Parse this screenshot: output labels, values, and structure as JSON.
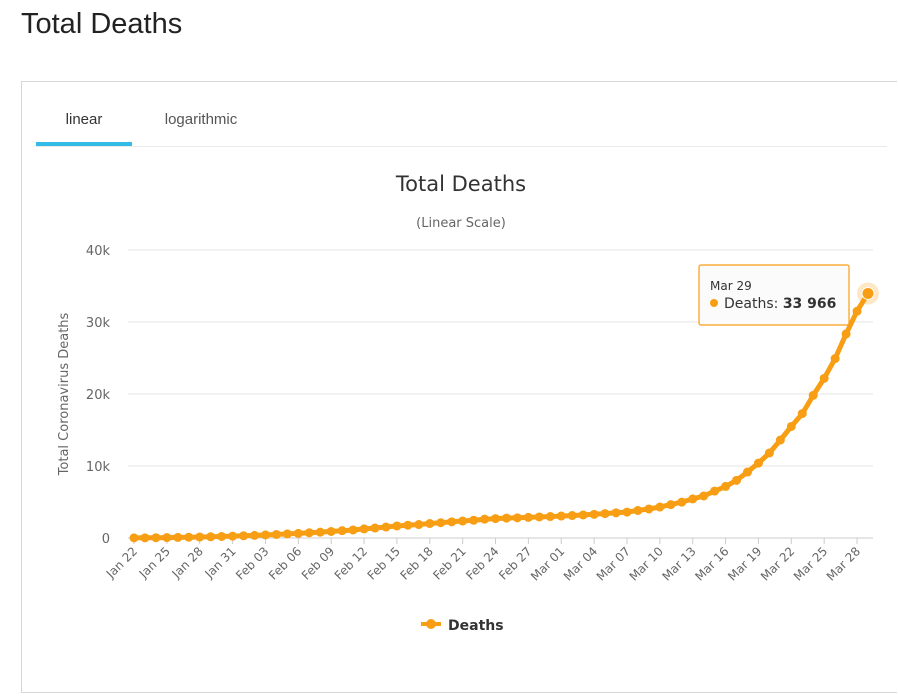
{
  "header": {
    "title": "Total Deaths"
  },
  "tabs": [
    {
      "label": "linear",
      "active": true
    },
    {
      "label": "logarithmic",
      "active": false
    }
  ],
  "colors": {
    "series": "#f79e14",
    "tab_active": "#33bbe8",
    "grid": "#e6e6e6"
  },
  "tooltip": {
    "date": "Mar 29",
    "series": "Deaths",
    "value": "33 966"
  },
  "chart_data": {
    "type": "line",
    "title": "Total Deaths",
    "subtitle": "(Linear Scale)",
    "ylabel": "Total Coronavirus Deaths",
    "xlabel": "",
    "ylim": [
      0,
      40000
    ],
    "yticks": [
      0,
      10000,
      20000,
      30000,
      40000
    ],
    "ytick_labels": [
      "0",
      "10k",
      "20k",
      "30k",
      "40k"
    ],
    "xtick_labels": [
      "Jan 22",
      "Jan 25",
      "Jan 28",
      "Jan 31",
      "Feb 03",
      "Feb 06",
      "Feb 09",
      "Feb 12",
      "Feb 15",
      "Feb 18",
      "Feb 21",
      "Feb 24",
      "Feb 27",
      "Mar 01",
      "Mar 04",
      "Mar 07",
      "Mar 10",
      "Mar 13",
      "Mar 16",
      "Mar 19",
      "Mar 22",
      "Mar 25",
      "Mar 28"
    ],
    "grid": true,
    "legend": "bottom-center",
    "series": [
      {
        "name": "Deaths",
        "x": [
          "Jan 22",
          "Jan 23",
          "Jan 24",
          "Jan 25",
          "Jan 26",
          "Jan 27",
          "Jan 28",
          "Jan 29",
          "Jan 30",
          "Jan 31",
          "Feb 01",
          "Feb 02",
          "Feb 03",
          "Feb 04",
          "Feb 05",
          "Feb 06",
          "Feb 07",
          "Feb 08",
          "Feb 09",
          "Feb 10",
          "Feb 11",
          "Feb 12",
          "Feb 13",
          "Feb 14",
          "Feb 15",
          "Feb 16",
          "Feb 17",
          "Feb 18",
          "Feb 19",
          "Feb 20",
          "Feb 21",
          "Feb 22",
          "Feb 23",
          "Feb 24",
          "Feb 25",
          "Feb 26",
          "Feb 27",
          "Feb 28",
          "Feb 29",
          "Mar 01",
          "Mar 02",
          "Mar 03",
          "Mar 04",
          "Mar 05",
          "Mar 06",
          "Mar 07",
          "Mar 08",
          "Mar 09",
          "Mar 10",
          "Mar 11",
          "Mar 12",
          "Mar 13",
          "Mar 14",
          "Mar 15",
          "Mar 16",
          "Mar 17",
          "Mar 18",
          "Mar 19",
          "Mar 20",
          "Mar 21",
          "Mar 22",
          "Mar 23",
          "Mar 24",
          "Mar 25",
          "Mar 26",
          "Mar 27",
          "Mar 28",
          "Mar 29"
        ],
        "values": [
          17,
          25,
          41,
          56,
          80,
          106,
          132,
          170,
          213,
          259,
          304,
          362,
          426,
          492,
          565,
          638,
          724,
          813,
          910,
          1018,
          1115,
          1261,
          1383,
          1526,
          1669,
          1775,
          1873,
          2009,
          2126,
          2247,
          2360,
          2460,
          2618,
          2699,
          2763,
          2800,
          2858,
          2924,
          2979,
          3050,
          3117,
          3202,
          3285,
          3387,
          3494,
          3599,
          3827,
          4032,
          4300,
          4633,
          4981,
          5429,
          5833,
          6519,
          7168,
          8010,
          9158,
          10403,
          11807,
          13605,
          15491,
          17281,
          19812,
          22178,
          24917,
          28349,
          31500,
          33966
        ]
      }
    ]
  }
}
